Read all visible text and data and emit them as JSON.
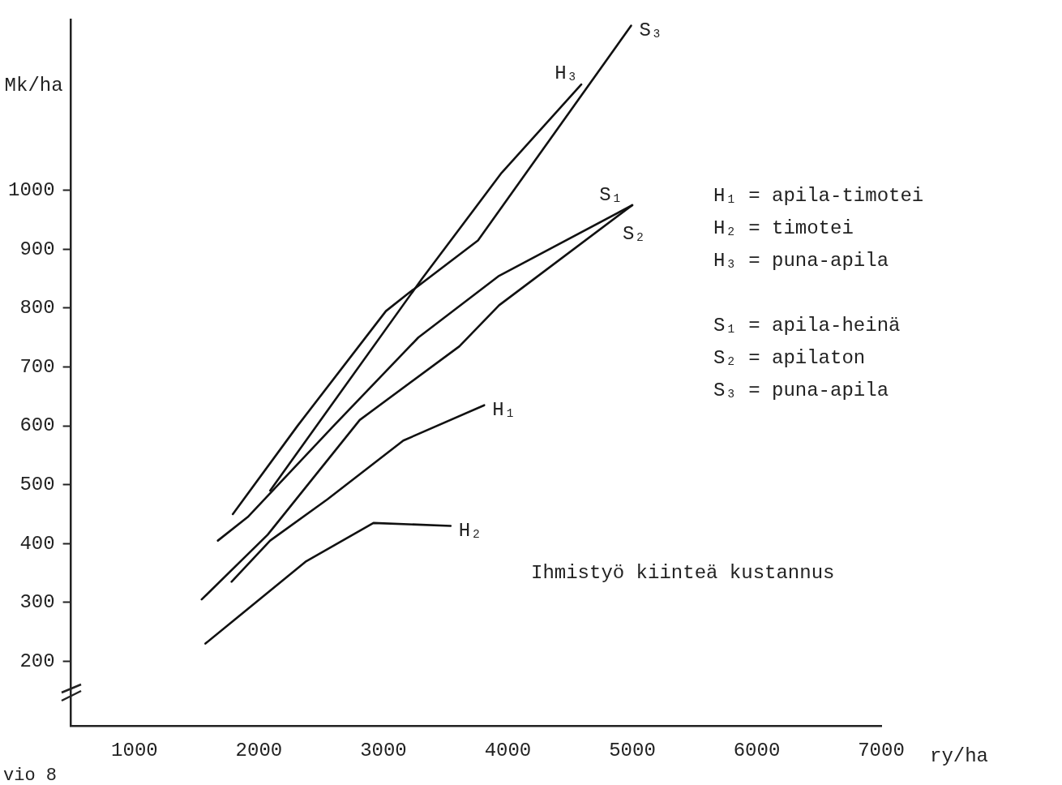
{
  "chart_data": {
    "type": "line",
    "xlabel": "ry/ha",
    "ylabel": "Mk/ha",
    "xlim": [
      490,
      7000
    ],
    "xticks": [
      1000,
      2000,
      3000,
      4000,
      5000,
      6000,
      7000
    ],
    "ylim": [
      90,
      1290
    ],
    "yticks": [
      200,
      300,
      400,
      500,
      600,
      700,
      800,
      900,
      1000
    ],
    "grid": false,
    "legend": false,
    "marker": "none",
    "line_style": "solid",
    "series": [
      {
        "name": "H₁",
        "color": "#111111",
        "x": [
          1780,
          2090,
          2550,
          3160,
          3810
        ],
        "values": [
          335,
          405,
          475,
          575,
          635
        ]
      },
      {
        "name": "H₂",
        "color": "#111111",
        "x": [
          1570,
          2380,
          2920,
          3540
        ],
        "values": [
          230,
          370,
          435,
          430
        ]
      },
      {
        "name": "H₃",
        "color": "#111111",
        "x": [
          2090,
          3310,
          3950,
          4590
        ],
        "values": [
          490,
          850,
          1030,
          1180
        ]
      },
      {
        "name": "S₁",
        "color": "#111111",
        "x": [
          1670,
          1910,
          2600,
          3280,
          3930,
          5000
        ],
        "values": [
          405,
          445,
          600,
          750,
          855,
          975
        ]
      },
      {
        "name": "S₂",
        "color": "#111111",
        "x": [
          1540,
          2070,
          2810,
          3610,
          3930,
          5000
        ],
        "values": [
          305,
          415,
          610,
          735,
          805,
          975
        ]
      },
      {
        "name": "S₃",
        "color": "#111111",
        "x": [
          1790,
          2310,
          3020,
          3200,
          3760,
          4990
        ],
        "values": [
          450,
          600,
          795,
          825,
          915,
          1280
        ]
      }
    ],
    "annotations": [
      "H₁ = apila-timotei",
      "H₂ = timotei",
      "H₃ = puna-apila",
      "S₁ = apila-heinä",
      "S₂ = apilaton",
      "S₃ = puna-apila",
      "Ihmistyö kiinteä kustannus",
      "vio 8"
    ]
  }
}
